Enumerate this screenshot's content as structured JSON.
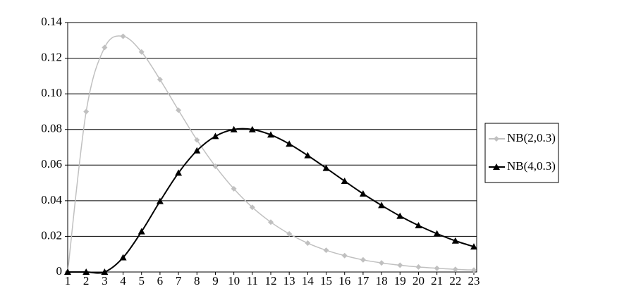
{
  "chart_data": {
    "type": "line",
    "categories": [
      "1",
      "2",
      "3",
      "4",
      "5",
      "6",
      "7",
      "8",
      "9",
      "10",
      "11",
      "12",
      "13",
      "14",
      "15",
      "16",
      "17",
      "18",
      "19",
      "20",
      "21",
      "22",
      "23"
    ],
    "series": [
      {
        "name": "NB(2,0.3)",
        "color": "#c0c0c0",
        "marker": "diamond",
        "values": [
          0,
          0.09,
          0.126,
          0.1323,
          0.1235,
          0.108,
          0.0908,
          0.0741,
          0.0593,
          0.0467,
          0.0363,
          0.028,
          0.0214,
          0.0162,
          0.0122,
          0.0092,
          0.0068,
          0.0051,
          0.0038,
          0.0028,
          0.0021,
          0.0015,
          0.0011
        ]
      },
      {
        "name": "NB(4,0.3)",
        "color": "#000000",
        "marker": "triangle",
        "values": [
          0,
          0,
          0,
          0.0081,
          0.0227,
          0.0397,
          0.0556,
          0.0681,
          0.0762,
          0.08,
          0.08,
          0.077,
          0.0719,
          0.0654,
          0.0583,
          0.051,
          0.0439,
          0.0374,
          0.0314,
          0.0261,
          0.0215,
          0.0175,
          0.0142
        ]
      }
    ],
    "ylim": [
      0,
      0.14
    ],
    "yticks": [
      0,
      0.02,
      0.04,
      0.06,
      0.08,
      {
        "value": 0.1,
        "label": "0.10"
      },
      0.12,
      0.14
    ],
    "grid": true,
    "legend": "right"
  }
}
